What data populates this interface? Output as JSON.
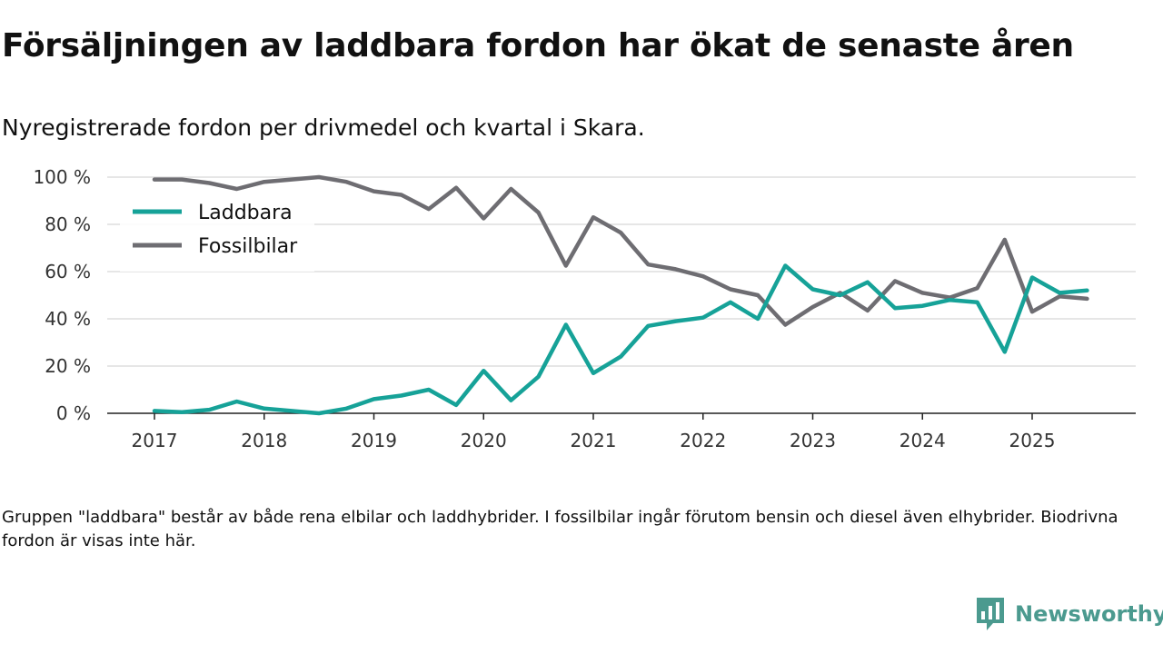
{
  "title": "Försäljningen av laddbara fordon har ökat de senaste åren",
  "subtitle": "Nyregistrerade fordon per drivmedel och kvartal i Skara.",
  "footnote": "Gruppen \"laddbara\" består av både rena elbilar och laddhybrider. I fossilbilar ingår förutom bensin och diesel även elhybrider. Biodrivna fordon är visas inte här.",
  "brand": {
    "name": "Newsworthy",
    "color": "#4b9a8f",
    "icon": "newsworthy-logo-icon"
  },
  "chart_data": {
    "type": "line",
    "title": "Försäljningen av laddbara fordon har ökat de senaste åren",
    "subtitle": "Nyregistrerade fordon per drivmedel och kvartal i Skara.",
    "xlabel": "",
    "ylabel": "",
    "xlim": [
      2017,
      2025.5
    ],
    "ylim": [
      0,
      100
    ],
    "xticks": [
      2017,
      2018,
      2019,
      2020,
      2021,
      2022,
      2023,
      2024,
      2025
    ],
    "xtick_labels": [
      "2017",
      "2018",
      "2019",
      "2020",
      "2021",
      "2022",
      "2023",
      "2024",
      "2025"
    ],
    "yticks": [
      0,
      20,
      40,
      60,
      80,
      100
    ],
    "ytick_labels": [
      "0 %",
      "20 %",
      "40 %",
      "60 %",
      "80 %",
      "100 %"
    ],
    "grid": true,
    "legend_position": "top-left",
    "x": [
      2017,
      2017.25,
      2017.5,
      2017.75,
      2018,
      2018.25,
      2018.5,
      2018.75,
      2019,
      2019.25,
      2019.5,
      2019.75,
      2020,
      2020.25,
      2020.5,
      2020.75,
      2021,
      2021.25,
      2021.5,
      2021.75,
      2022,
      2022.25,
      2022.5,
      2022.75,
      2023,
      2023.25,
      2023.5,
      2023.75,
      2024,
      2024.25,
      2024.5,
      2024.75,
      2025,
      2025.25,
      2025.5
    ],
    "series": [
      {
        "name": "Laddbara",
        "color": "#16a298",
        "values": [
          1,
          0.5,
          1.5,
          5,
          2,
          1,
          0,
          2,
          6,
          7.5,
          10,
          3.5,
          18,
          5.5,
          15.5,
          37.5,
          17,
          24,
          37,
          39,
          40.5,
          47,
          40,
          62.5,
          52.5,
          50,
          55.5,
          44.5,
          45.5,
          48,
          47,
          26,
          57.5,
          51,
          52
        ]
      },
      {
        "name": "Fossilbilar",
        "color": "#6e6d72",
        "values": [
          99,
          99,
          97.5,
          95,
          98,
          99,
          100,
          98,
          94,
          92.5,
          86.5,
          95.5,
          82.5,
          95,
          85,
          62.5,
          83,
          76.5,
          63,
          61,
          58,
          52.5,
          50,
          37.5,
          45,
          51,
          43.5,
          56,
          51,
          49,
          53,
          73.5,
          43,
          49.5,
          48.5
        ]
      }
    ]
  }
}
